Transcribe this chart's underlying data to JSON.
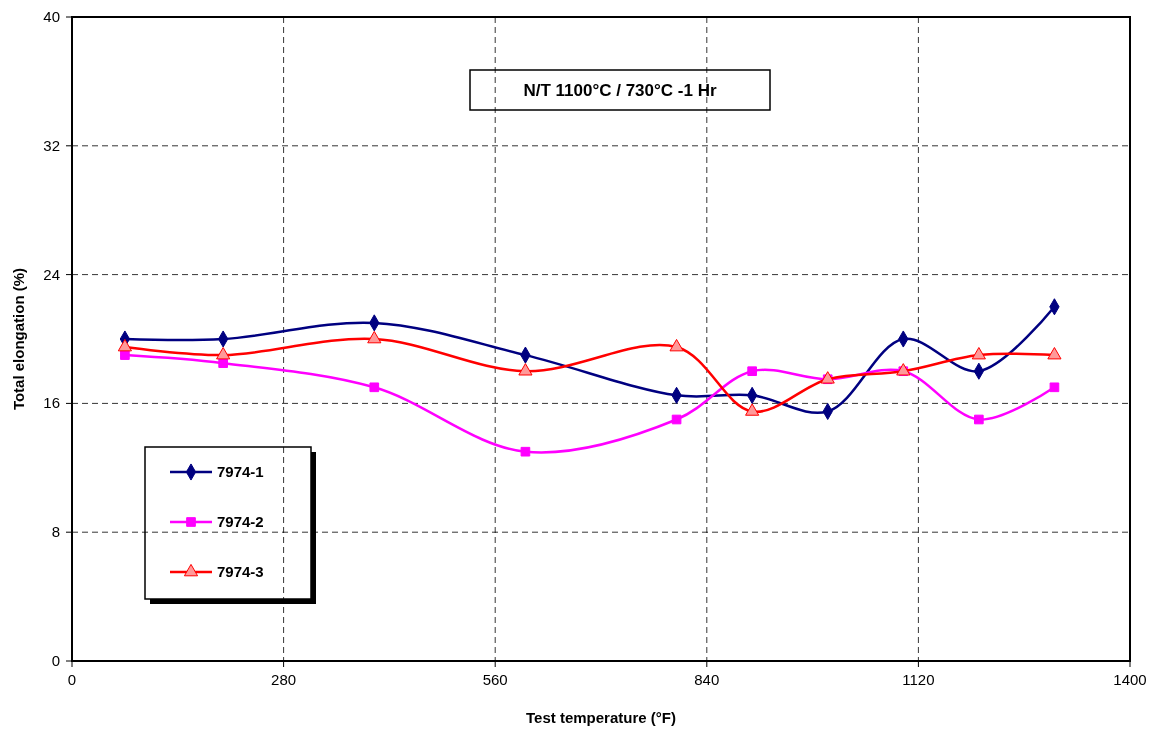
{
  "chart_data": {
    "type": "line",
    "title": "N/T 1100°C / 730°C -1 Hr",
    "xlabel": "Test temperature (°F)",
    "ylabel": "Total elongation (%)",
    "x": [
      70,
      200,
      400,
      600,
      800,
      900,
      1000,
      1100,
      1200,
      1300
    ],
    "series": [
      {
        "name": "7974-1",
        "color": "#000080",
        "marker": "diamond",
        "values": [
          20,
          20,
          21,
          19,
          16.5,
          16.5,
          15.5,
          20,
          18,
          22
        ]
      },
      {
        "name": "7974-2",
        "color": "#ff00ff",
        "marker": "square",
        "values": [
          19,
          18.5,
          17,
          13,
          15,
          18,
          17.5,
          18,
          15,
          17
        ]
      },
      {
        "name": "7974-3",
        "color": "#ff0000",
        "marker": "triangle",
        "values": [
          19.5,
          19,
          20,
          18,
          19.5,
          15.5,
          17.5,
          18,
          19,
          19
        ]
      }
    ],
    "xlim": [
      0,
      1400
    ],
    "xticks": [
      0,
      280,
      560,
      840,
      1120,
      1400
    ],
    "ylim": [
      0,
      40
    ],
    "yticks": [
      0,
      8,
      16,
      24,
      32,
      40
    ],
    "grid": true,
    "legend": "left",
    "line_style": "solid"
  }
}
